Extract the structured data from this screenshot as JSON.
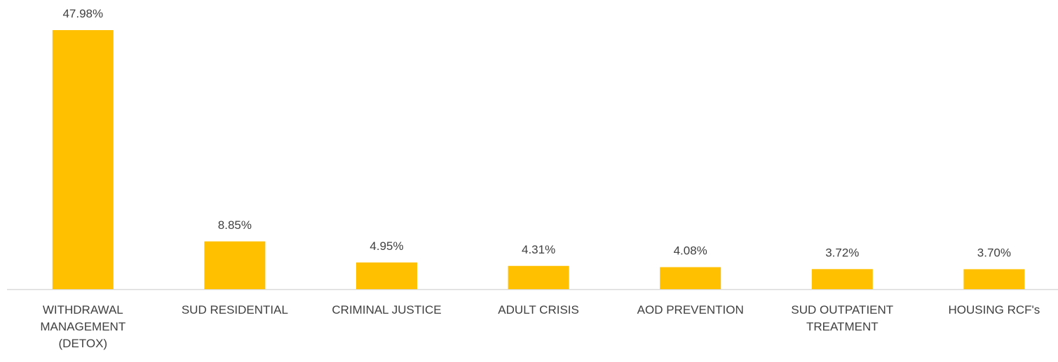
{
  "chart_data": {
    "type": "bar",
    "categories": [
      "WITHDRAWAL MANAGEMENT (DETOX)",
      "SUD RESIDENTIAL",
      "CRIMINAL JUSTICE",
      "ADULT CRISIS",
      "AOD PREVENTION",
      "SUD OUTPATIENT TREATMENT",
      "HOUSING RCF's"
    ],
    "values": [
      47.98,
      8.85,
      4.95,
      4.31,
      4.08,
      3.72,
      3.7
    ],
    "value_labels": [
      "47.98%",
      "8.85%",
      "4.95%",
      "4.31%",
      "4.08%",
      "3.72%",
      "3.70%"
    ],
    "color": "#ffc000"
  }
}
